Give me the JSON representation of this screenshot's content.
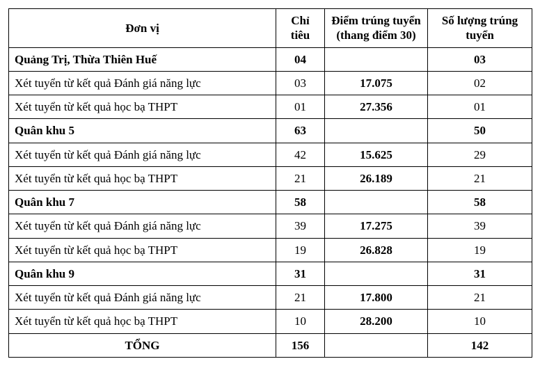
{
  "headers": {
    "donvi": "Đơn vị",
    "chitieu": "Chỉ tiêu",
    "diem": "Điểm trúng tuyển (thang điểm 30)",
    "soluong": "Số lượng trúng tuyển"
  },
  "rows": [
    {
      "donvi": "Quảng Trị, Thừa Thiên Huế",
      "chitieu": "04",
      "diem": "",
      "soluong": "03",
      "bold": true,
      "donvi_align": "left"
    },
    {
      "donvi": "Xét tuyển từ kết quả Đánh giá năng lực",
      "chitieu": "03",
      "diem": "17.075",
      "soluong": "02",
      "bold": false,
      "diem_bold": true,
      "donvi_align": "left"
    },
    {
      "donvi": "Xét tuyển từ kết quả học bạ THPT",
      "chitieu": "01",
      "diem": "27.356",
      "soluong": "01",
      "bold": false,
      "diem_bold": true,
      "donvi_align": "left"
    },
    {
      "donvi": "Quân khu 5",
      "chitieu": "63",
      "diem": "",
      "soluong": "50",
      "bold": true,
      "donvi_align": "left"
    },
    {
      "donvi": "Xét tuyển từ kết quả Đánh giá năng lực",
      "chitieu": "42",
      "diem": "15.625",
      "soluong": "29",
      "bold": false,
      "diem_bold": true,
      "donvi_align": "left"
    },
    {
      "donvi": "Xét tuyển từ kết quả học bạ THPT",
      "chitieu": "21",
      "diem": "26.189",
      "soluong": "21",
      "bold": false,
      "diem_bold": true,
      "donvi_align": "left"
    },
    {
      "donvi": "Quân khu 7",
      "chitieu": "58",
      "diem": "",
      "soluong": "58",
      "bold": true,
      "donvi_align": "left"
    },
    {
      "donvi": "Xét tuyển từ kết quả Đánh giá năng lực",
      "chitieu": "39",
      "diem": "17.275",
      "soluong": "39",
      "bold": false,
      "diem_bold": true,
      "donvi_align": "left"
    },
    {
      "donvi": "Xét tuyển từ kết quả học bạ THPT",
      "chitieu": "19",
      "diem": "26.828",
      "soluong": "19",
      "bold": false,
      "diem_bold": true,
      "donvi_align": "left"
    },
    {
      "donvi": "Quân khu 9",
      "chitieu": "31",
      "diem": "",
      "soluong": "31",
      "bold": true,
      "donvi_align": "left"
    },
    {
      "donvi": "Xét tuyển từ kết quả Đánh giá năng lực",
      "chitieu": "21",
      "diem": "17.800",
      "soluong": "21",
      "bold": false,
      "diem_bold": true,
      "donvi_align": "left"
    },
    {
      "donvi": "Xét tuyển từ kết quả học bạ THPT",
      "chitieu": "10",
      "diem": "28.200",
      "soluong": "10",
      "bold": false,
      "diem_bold": true,
      "donvi_align": "left"
    },
    {
      "donvi": "TỔNG",
      "chitieu": "156",
      "diem": "",
      "soluong": "142",
      "bold": true,
      "donvi_align": "center"
    }
  ]
}
